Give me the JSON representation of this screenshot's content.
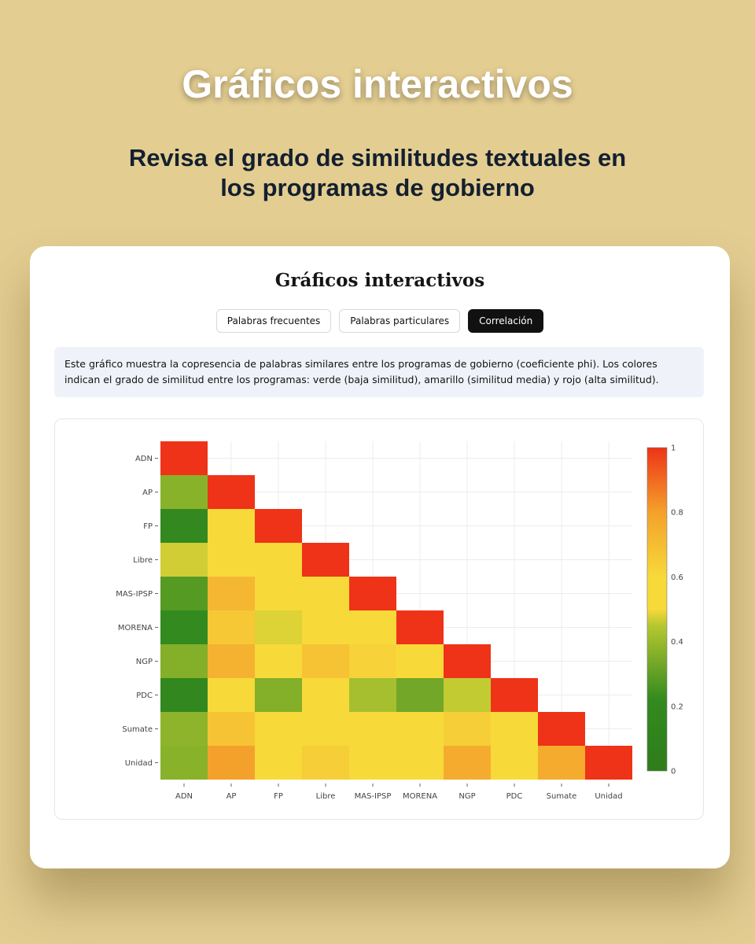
{
  "hero": {
    "title": "Gráficos interactivos",
    "subtitle": "Revisa el grado de similitudes textuales en los programas de gobierno"
  },
  "card": {
    "title": "Gráficos interactivos",
    "tabs": [
      {
        "label": "Palabras frecuentes",
        "active": false
      },
      {
        "label": "Palabras particulares",
        "active": false
      },
      {
        "label": "Correlación",
        "active": true
      }
    ],
    "description": "Este gráfico muestra la copresencia de palabras similares entre los programas de gobierno (coeficiente phi). Los colores indican el grado de similitud entre los programas: verde (baja similitud), amarillo (similitud media) y rojo (alta similitud)."
  },
  "colors": {
    "background": "#e3cd91",
    "low": "#2e7d1a",
    "mid": "#f7d93a",
    "high": "#ee3318"
  },
  "chart_data": {
    "type": "heatmap",
    "x": [
      "ADN",
      "AP",
      "FP",
      "Libre",
      "MAS-IPSP",
      "MORENA",
      "NGP",
      "PDC",
      "Sumate",
      "Unidad"
    ],
    "y": [
      "ADN",
      "AP",
      "FP",
      "Libre",
      "MAS-IPSP",
      "MORENA",
      "NGP",
      "PDC",
      "Sumate",
      "Unidad"
    ],
    "z": [
      [
        1
      ],
      [
        0.37,
        1
      ],
      [
        0.2,
        0.58,
        1
      ],
      [
        0.47,
        0.58,
        0.58,
        1
      ],
      [
        0.28,
        0.72,
        0.58,
        0.58,
        1
      ],
      [
        0.22,
        0.66,
        0.48,
        0.58,
        0.58,
        1
      ],
      [
        0.36,
        0.74,
        0.58,
        0.68,
        0.62,
        0.58,
        1
      ],
      [
        0.19,
        0.58,
        0.36,
        0.52,
        0.42,
        0.33,
        0.46,
        1
      ],
      [
        0.38,
        0.68,
        0.6,
        0.58,
        0.58,
        0.58,
        0.64,
        0.58,
        1
      ],
      [
        0.37,
        0.8,
        0.58,
        0.64,
        0.58,
        0.58,
        0.76,
        0.58,
        0.76,
        1
      ]
    ],
    "colorscale": [
      "green",
      "yellow",
      "red"
    ],
    "zrange": [
      0,
      1
    ],
    "colorbar_ticks": [
      "0",
      "0.2",
      "0.4",
      "0.6",
      "0.8",
      "1"
    ],
    "grid": true
  }
}
